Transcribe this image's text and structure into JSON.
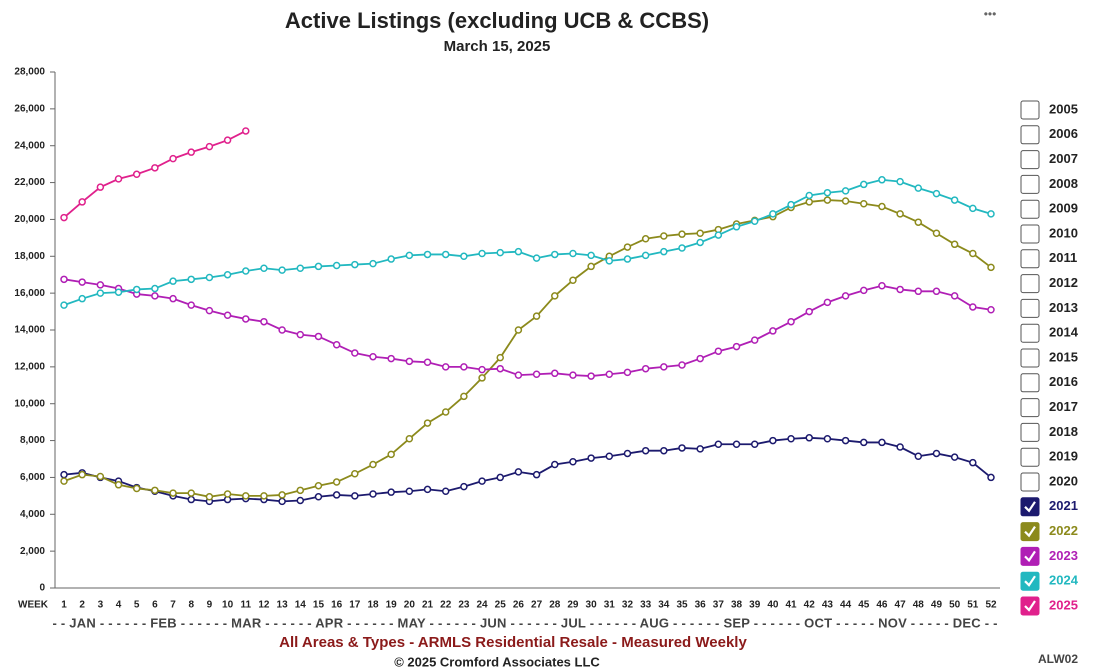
{
  "chart_data": {
    "type": "line",
    "title": "Active Listings (excluding UCB & CCBS)",
    "subtitle": "March 15, 2025",
    "x_label": "WEEK",
    "month_row": "- - JAN - - - - - - FEB - - - - - - MAR - - - - - - APR - - - - - - MAY - - - - - - JUN - - - - - - JUL - - - - - - AUG - - - - - - SEP - - - - - - OCT - - - - - NOV - - - - - DEC - -",
    "footer": "All Areas & Types - ARMLS Residential Resale - Measured Weekly",
    "copyright": "© 2025 Cromford Associates LLC",
    "code": "ALW02",
    "menu": "•••",
    "categories": [
      "1",
      "2",
      "3",
      "4",
      "5",
      "6",
      "7",
      "8",
      "9",
      "10",
      "11",
      "12",
      "13",
      "14",
      "15",
      "16",
      "17",
      "18",
      "19",
      "20",
      "21",
      "22",
      "23",
      "24",
      "25",
      "26",
      "27",
      "28",
      "29",
      "30",
      "31",
      "32",
      "33",
      "34",
      "35",
      "36",
      "37",
      "38",
      "39",
      "40",
      "41",
      "42",
      "43",
      "44",
      "45",
      "46",
      "47",
      "48",
      "49",
      "50",
      "51",
      "52"
    ],
    "ylim": [
      0,
      28000
    ],
    "yticks": [
      0,
      {
        "value": 2000,
        "label": "2,000"
      },
      {
        "value": 4000,
        "label": "4,000"
      },
      {
        "value": 6000,
        "label": "6,000"
      },
      {
        "value": 8000,
        "label": "8,000"
      },
      {
        "value": 10000,
        "label": "10,000"
      },
      {
        "value": 12000,
        "label": "12,000"
      },
      {
        "value": 14000,
        "label": "14,000"
      },
      {
        "value": 16000,
        "label": "16,000"
      },
      {
        "value": 18000,
        "label": "18,000"
      },
      {
        "value": 20000,
        "label": "20,000"
      },
      {
        "value": 22000,
        "label": "22,000"
      },
      {
        "value": 24000,
        "label": "24,000"
      },
      {
        "value": 26000,
        "label": "26,000"
      },
      {
        "value": 28000,
        "label": "28,000"
      }
    ],
    "grid": false,
    "unchecked_years": [
      "2005",
      "2006",
      "2007",
      "2008",
      "2009",
      "2010",
      "2011",
      "2012",
      "2013",
      "2014",
      "2015",
      "2016",
      "2017",
      "2018",
      "2019",
      "2020"
    ],
    "series": [
      {
        "name": "2021",
        "color": "#1c1a6e",
        "values": [
          6150,
          6250,
          6000,
          5800,
          5450,
          5250,
          5000,
          4800,
          4700,
          4800,
          4850,
          4800,
          4700,
          4750,
          4950,
          5050,
          5000,
          5100,
          5200,
          5250,
          5350,
          5250,
          5500,
          5800,
          6000,
          6300,
          6150,
          6700,
          6850,
          7050,
          7150,
          7300,
          7450,
          7450,
          7600,
          7550,
          7800,
          7800,
          7800,
          8000,
          8100,
          8150,
          8100,
          8000,
          7900,
          7900,
          7650,
          7150,
          7300,
          7100,
          6800,
          6000
        ]
      },
      {
        "name": "2022",
        "color": "#8c8a1c",
        "values": [
          5800,
          6150,
          6050,
          5600,
          5400,
          5300,
          5150,
          5150,
          4950,
          5100,
          5000,
          5000,
          5050,
          5300,
          5550,
          5750,
          6200,
          6700,
          7250,
          8100,
          8950,
          9550,
          10400,
          11400,
          12500,
          14000,
          14750,
          15850,
          16700,
          17450,
          18000,
          18500,
          18950,
          19100,
          19200,
          19250,
          19450,
          19750,
          19950,
          20150,
          20650,
          20950,
          21050,
          21000,
          20850,
          20700,
          20300,
          19850,
          19250,
          18650,
          18150,
          17400
        ]
      },
      {
        "name": "2023",
        "color": "#b01fb5",
        "values": [
          16750,
          16600,
          16450,
          16250,
          15950,
          15850,
          15700,
          15350,
          15050,
          14800,
          14600,
          14450,
          14000,
          13750,
          13650,
          13200,
          12750,
          12550,
          12450,
          12300,
          12250,
          12000,
          12000,
          11850,
          11900,
          11550,
          11600,
          11650,
          11550,
          11500,
          11600,
          11700,
          11900,
          12000,
          12100,
          12450,
          12850,
          13100,
          13450,
          13950,
          14450,
          15000,
          15500,
          15850,
          16150,
          16400,
          16200,
          16100,
          16100,
          15850,
          15250,
          15100
        ]
      },
      {
        "name": "2024",
        "color": "#22b8c0",
        "values": [
          15350,
          15700,
          16000,
          16050,
          16200,
          16250,
          16650,
          16750,
          16850,
          17000,
          17200,
          17350,
          17250,
          17350,
          17450,
          17500,
          17550,
          17600,
          17850,
          18050,
          18100,
          18100,
          18000,
          18150,
          18200,
          18250,
          17900,
          18100,
          18150,
          18050,
          17750,
          17850,
          18050,
          18250,
          18450,
          18750,
          19150,
          19600,
          19900,
          20300,
          20800,
          21300,
          21450,
          21550,
          21900,
          22150,
          22050,
          21700,
          21400,
          21050,
          20600,
          20300
        ]
      },
      {
        "name": "2025",
        "color": "#e0218c",
        "values": [
          20100,
          20950,
          21750,
          22200,
          22450,
          22800,
          23300,
          23650,
          23950,
          24300,
          24800,
          null,
          null,
          null,
          null,
          null,
          null,
          null,
          null,
          null,
          null,
          null,
          null,
          null,
          null,
          null,
          null,
          null,
          null,
          null,
          null,
          null,
          null,
          null,
          null,
          null,
          null,
          null,
          null,
          null,
          null,
          null,
          null,
          null,
          null,
          null,
          null,
          null,
          null,
          null,
          null,
          null
        ]
      }
    ]
  }
}
